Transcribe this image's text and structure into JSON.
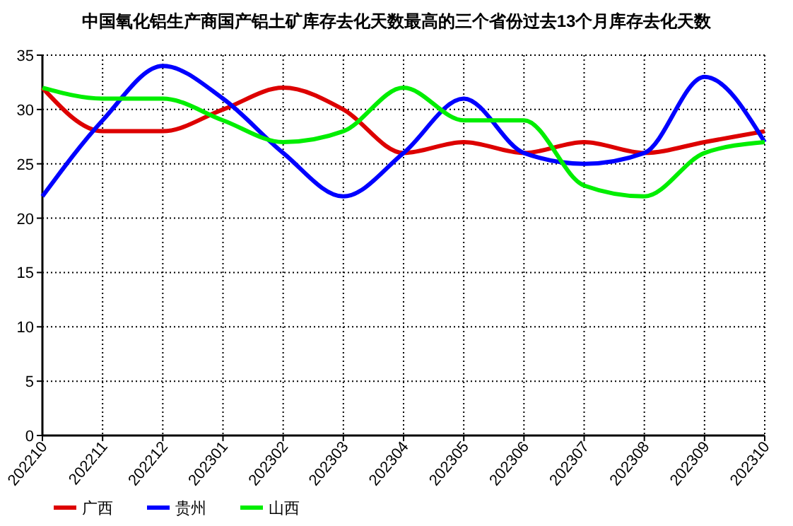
{
  "chart_data": {
    "type": "line",
    "title": "中国氧化铝生产商国产铝土矿库存去化天数最高的三个省份过去13个月库存去化天数",
    "categories": [
      "202210",
      "202211",
      "202212",
      "202301",
      "202302",
      "202303",
      "202304",
      "202305",
      "202306",
      "202307",
      "202308",
      "202309",
      "202310"
    ],
    "series": [
      {
        "name": "广西",
        "color": "#dd0000",
        "values": [
          32,
          28,
          28,
          30,
          32,
          30,
          26,
          27,
          26,
          27,
          26,
          27,
          28
        ]
      },
      {
        "name": "贵州",
        "color": "#0000ff",
        "values": [
          22,
          29,
          34,
          31,
          26,
          22,
          26,
          31,
          26,
          25,
          26,
          33,
          27
        ]
      },
      {
        "name": "山西",
        "color": "#00ee00",
        "values": [
          32,
          31,
          31,
          29,
          27,
          28,
          32,
          29,
          29,
          23,
          22,
          26,
          27
        ]
      }
    ],
    "ylim": [
      0,
      35
    ],
    "yticks": [
      0,
      5,
      10,
      15,
      20,
      25,
      30,
      35
    ],
    "grid": true,
    "legend": "bottom left",
    "marker": "none",
    "line_style": "solid"
  }
}
